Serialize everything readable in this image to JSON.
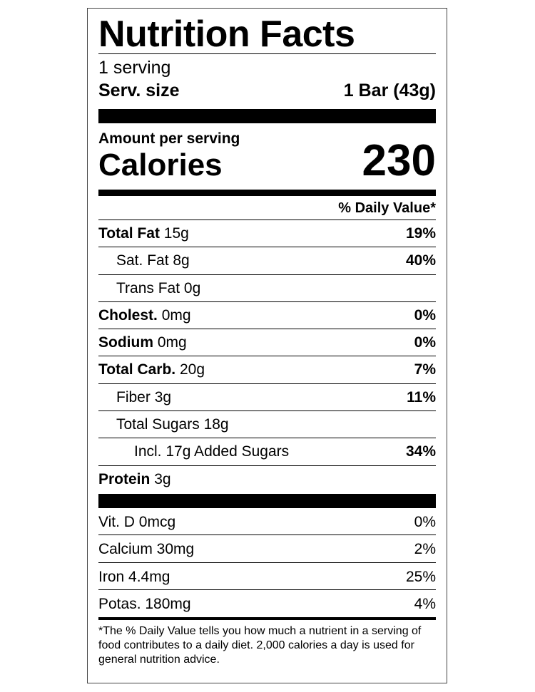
{
  "title": "Nutrition Facts",
  "servings": "1 serving",
  "serving_size": {
    "label": "Serv. size",
    "value": "1 Bar (43g)"
  },
  "amount_per_serving": "Amount per serving",
  "calories": {
    "label": "Calories",
    "value": "230"
  },
  "daily_value_header": "% Daily Value*",
  "nutrients": [
    {
      "name": "Total Fat",
      "amount": "15g",
      "dv": "19%"
    },
    {
      "name": "Sat. Fat",
      "amount": "8g",
      "dv": "40%"
    },
    {
      "name": "Trans Fat",
      "amount": "0g",
      "dv": ""
    },
    {
      "name": "Cholest.",
      "amount": "0mg",
      "dv": "0%"
    },
    {
      "name": "Sodium",
      "amount": "0mg",
      "dv": "0%"
    },
    {
      "name": "Total Carb.",
      "amount": "20g",
      "dv": "7%"
    },
    {
      "name": "Fiber",
      "amount": "3g",
      "dv": "11%"
    },
    {
      "name": "Total Sugars",
      "amount": "18g",
      "dv": ""
    },
    {
      "name": "Incl. 17g Added Sugars",
      "amount": "",
      "dv": "34%"
    },
    {
      "name": "Protein",
      "amount": "3g",
      "dv": ""
    }
  ],
  "vitamins": [
    {
      "text": "Vit. D 0mcg",
      "dv": "0%"
    },
    {
      "text": "Calcium 30mg",
      "dv": "2%"
    },
    {
      "text": "Iron 4.4mg",
      "dv": "25%"
    },
    {
      "text": "Potas. 180mg",
      "dv": "4%"
    }
  ],
  "footnote": "*The % Daily Value tells you how much a nutrient in a serving of food contributes to a daily diet. 2,000 calories a day is used for general nutrition advice."
}
